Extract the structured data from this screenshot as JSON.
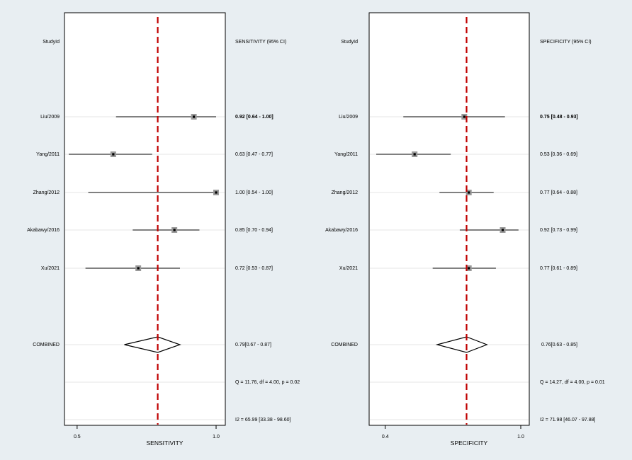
{
  "chart_data": [
    {
      "type": "forest",
      "studies": [
        "Liu/2009",
        "Yang/2011",
        "Zhang/2012",
        "Akabawy/2016",
        "Xu/2021"
      ],
      "point": [
        0.92,
        0.63,
        1.0,
        0.85,
        0.72
      ],
      "ci_low": [
        0.64,
        0.47,
        0.54,
        0.7,
        0.53
      ],
      "ci_high": [
        1.0,
        0.77,
        1.0,
        0.94,
        0.87
      ],
      "ci_labels": [
        "0.92 [0.64 - 1.00]",
        "0.63 [0.47 - 0.77]",
        "1.00 [0.54 - 1.00]",
        "0.85 [0.70 - 0.94]",
        "0.72 [0.53 - 0.87]"
      ],
      "combined": {
        "label": "COMBINED",
        "point": 0.79,
        "ci_low": 0.67,
        "ci_high": 0.87,
        "text": "0.79[0.67 - 0.87]"
      },
      "heterogeneity_q": "Q = 11.76, df = 4.00, p =  0.02",
      "heterogeneity_i2": "I2 = 65.99 [33.38 - 98.60]",
      "header_left": "StudyId",
      "header_right": "SENSITIVITY (95% CI)",
      "xlabel": "SENSITIVITY",
      "xlim": [
        0.48,
        1.0
      ],
      "ticks": [
        "0.5",
        "1.0"
      ],
      "tick_values": [
        0.5,
        1.0
      ],
      "reference_value": 0.79
    },
    {
      "type": "forest",
      "studies": [
        "Liu/2009",
        "Yang/2011",
        "Zhang/2012",
        "Akabawy/2016",
        "Xu/2021"
      ],
      "point": [
        0.75,
        0.53,
        0.77,
        0.92,
        0.77
      ],
      "ci_low": [
        0.48,
        0.36,
        0.64,
        0.73,
        0.61
      ],
      "ci_high": [
        0.93,
        0.69,
        0.88,
        0.99,
        0.89
      ],
      "ci_labels": [
        "0.75 [0.48 - 0.93]",
        "0.53 [0.36 - 0.69]",
        "0.77 [0.64 - 0.88]",
        "0.92 [0.73 - 0.99]",
        "0.77 [0.61 - 0.89]"
      ],
      "combined": {
        "label": "COMBINED",
        "point": 0.76,
        "ci_low": 0.63,
        "ci_high": 0.85,
        "text": "0.76[0.63 - 0.85]"
      },
      "heterogeneity_q": "Q = 14.27, df = 4.00, p =  0.01",
      "heterogeneity_i2": "I2 = 71.98 [46.07 - 97.88]",
      "header_left": "StudyId",
      "header_right": "SPECIFICITY (95% CI)",
      "xlabel": "SPECIFICITY",
      "xlim": [
        0.36,
        1.0
      ],
      "ticks": [
        "0.4",
        "1.0"
      ],
      "tick_values": [
        0.4,
        1.0
      ],
      "reference_value": 0.76
    }
  ],
  "colors": {
    "background": "#e8eef2",
    "plot_area": "#ffffff",
    "reference_line": "#c00000",
    "row_band": "#e4e4e4",
    "marker": "#999999"
  }
}
